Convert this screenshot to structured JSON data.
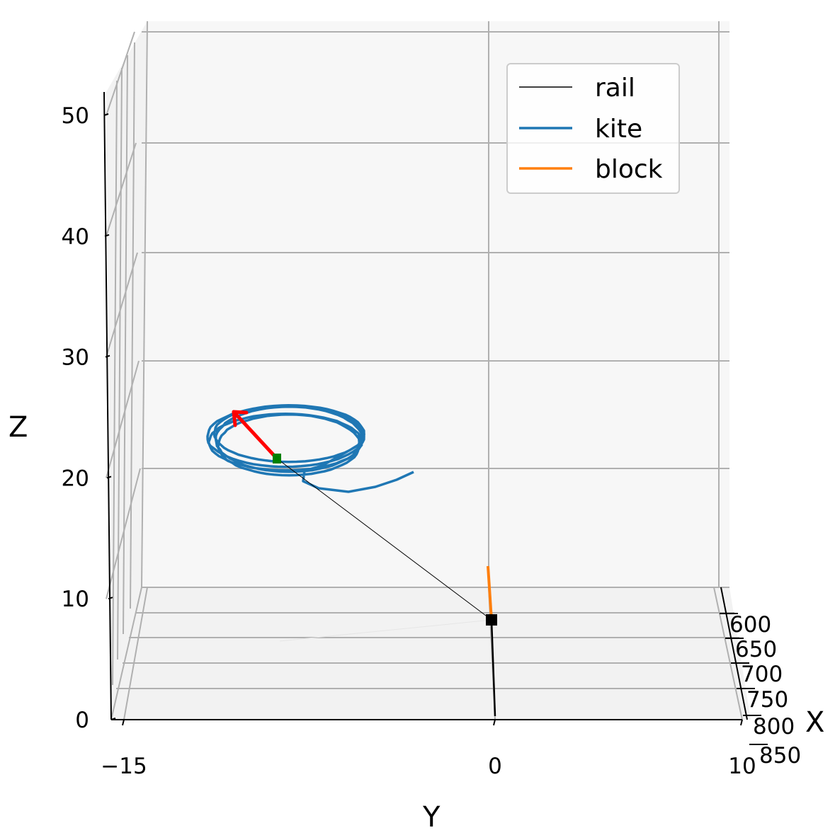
{
  "chart_data": {
    "type": "line3d",
    "title": "",
    "xlabel": "X",
    "ylabel": "Y",
    "zlabel": "Z",
    "x_ticks": [
      "600",
      "650",
      "700",
      "750",
      "800",
      "850"
    ],
    "y_ticks": [
      "−15",
      "0",
      "10"
    ],
    "z_ticks": [
      "0",
      "10",
      "20",
      "30",
      "40",
      "50"
    ],
    "xlim": [
      575,
      870
    ],
    "ylim": [
      -15,
      10
    ],
    "zlim": [
      0,
      52
    ],
    "grid": true,
    "legend": {
      "position": "top-right",
      "entries": [
        {
          "label": "rail",
          "color": "#000000"
        },
        {
          "label": "kite",
          "color": "#1f77b4"
        },
        {
          "label": "block",
          "color": "#ff7f0e"
        }
      ]
    },
    "series": [
      {
        "name": "rail",
        "color": "#000000",
        "points": [
          [
            620,
            0,
            11
          ],
          [
            770,
            0,
            2
          ]
        ]
      },
      {
        "name": "kite",
        "color": "#1f77b4",
        "kind": "circling-flight-path",
        "center": [
          560,
          -8.4,
          23.2
        ],
        "radius": [
          6.0,
          3.6
        ],
        "loops": 5,
        "exit_to": [
          560,
          -3.2,
          23.5
        ]
      },
      {
        "name": "block",
        "color": "#ff7f0e",
        "points": [
          [
            620,
            0,
            12
          ],
          [
            620,
            0,
            15
          ]
        ]
      }
    ],
    "tether": {
      "from": [
        560,
        -8.4,
        24.2
      ],
      "to": [
        620,
        0,
        12
      ],
      "color": "#000000"
    },
    "kite_position": {
      "point": [
        560,
        -8.4,
        24.2
      ],
      "color": "#008000"
    },
    "block_position": {
      "point": [
        620,
        0,
        12
      ],
      "color": "#000000"
    },
    "force_vector": {
      "from": [
        560,
        -8.4,
        24.2
      ],
      "to": [
        560,
        -10.4,
        27.2
      ],
      "color": "#ff0000"
    }
  }
}
